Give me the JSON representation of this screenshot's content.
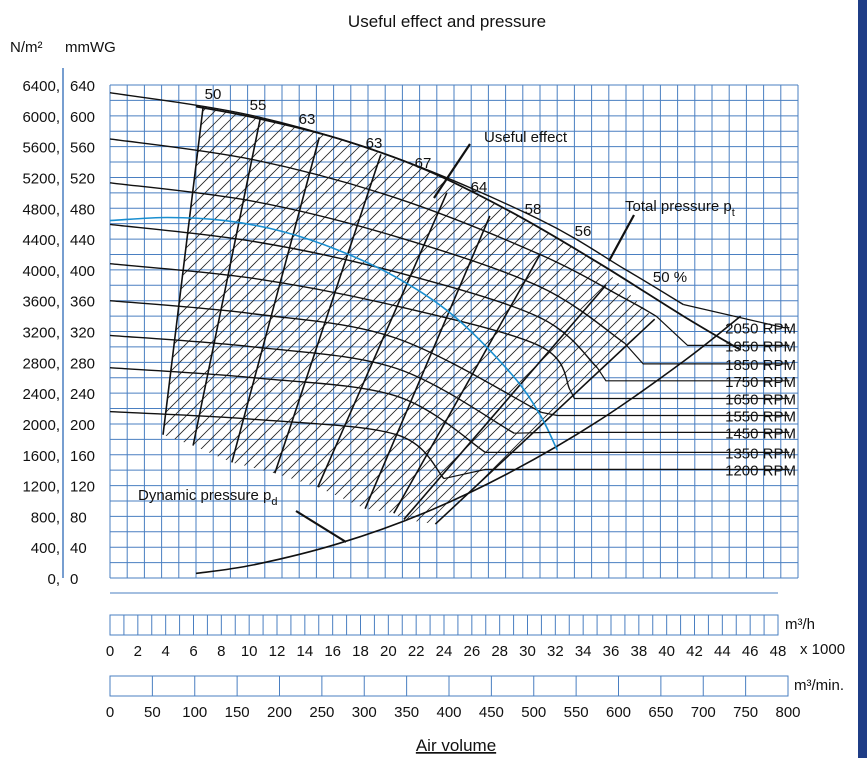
{
  "chart_data": {
    "type": "line",
    "title": "Useful effect and pressure",
    "xlabel": "Air volume",
    "left_axis_units": "N/m²",
    "right_axis_units": "mmWG",
    "y_range_mmwg": [
      0,
      640
    ],
    "y_range_nm2": [
      0,
      6400
    ],
    "y_ticks_mmwg": [
      "0",
      "40",
      "80",
      "120",
      "160",
      "200",
      "240",
      "280",
      "320",
      "360",
      "400",
      "440",
      "480",
      "520",
      "560",
      "600",
      "640"
    ],
    "y_ticks_nm2": [
      "0",
      "400",
      "800",
      "1200",
      "1600",
      "2000",
      "2400",
      "2800",
      "3200",
      "3600",
      "4000",
      "4400",
      "4800",
      "5200",
      "5600",
      "6000",
      "6400"
    ],
    "grid": true,
    "x_scale_top": {
      "unit": "m³/h",
      "multiplier": "x 1000",
      "range": [
        0,
        48
      ],
      "ticks": [
        "0",
        "2",
        "4",
        "6",
        "8",
        "10",
        "12",
        "14",
        "16",
        "18",
        "20",
        "22",
        "24",
        "26",
        "28",
        "30",
        "32",
        "34",
        "36",
        "38",
        "40",
        "42",
        "44",
        "46",
        "48"
      ]
    },
    "x_scale_bottom": {
      "unit": "m³/min.",
      "range": [
        0,
        800
      ],
      "ticks": [
        "0",
        "50",
        "100",
        "150",
        "200",
        "250",
        "300",
        "350",
        "400",
        "450",
        "500",
        "550",
        "600",
        "650",
        "700",
        "750",
        "800"
      ]
    },
    "speed_curves": [
      {
        "name": "2050 RPM",
        "x": [
          0,
          10,
          20,
          30,
          36,
          40
        ],
        "y": [
          630,
          600,
          545,
          465,
          400,
          355
        ]
      },
      {
        "name": "1950 RPM",
        "x": [
          0,
          10,
          20,
          30,
          36,
          38.1
        ],
        "y": [
          570,
          543,
          493,
          420,
          362,
          340
        ]
      },
      {
        "name": "1850 RPM",
        "x": [
          0,
          10,
          20,
          30,
          35.9
        ],
        "y": [
          513,
          489,
          443,
          378,
          305
        ]
      },
      {
        "name": "1750 RPM",
        "x": [
          0,
          10,
          20,
          30,
          34.0
        ],
        "y": [
          459,
          437,
          397,
          338,
          273
        ]
      },
      {
        "name": "1650 RPM",
        "x": [
          0,
          10,
          20,
          30,
          32.1
        ],
        "y": [
          408,
          389,
          353,
          301,
          244
        ]
      },
      {
        "name": "1550 RPM",
        "x": [
          0,
          10,
          20,
          30.1
        ],
        "y": [
          360,
          343,
          311,
          215
        ]
      },
      {
        "name": "1450 RPM",
        "x": [
          0,
          10,
          20,
          28.2
        ],
        "y": [
          315,
          300,
          272,
          188
        ]
      },
      {
        "name": "1350 RPM",
        "x": [
          0,
          10,
          20,
          26.2
        ],
        "y": [
          273,
          260,
          236,
          163
        ]
      },
      {
        "name": "1200 RPM",
        "x": [
          0,
          10,
          20,
          23.3
        ],
        "y": [
          216,
          206,
          186,
          129
        ]
      }
    ],
    "total_pressure_curve": {
      "name": "Total pressure pt",
      "x": [
        6,
        10,
        16,
        22,
        28,
        34,
        40,
        44
      ],
      "y": [
        612,
        598,
        570,
        530,
        475,
        410,
        340,
        296
      ]
    },
    "dynamic_pressure_curve": {
      "name": "Dynamic pressure pd",
      "x": [
        6,
        10,
        16,
        22,
        28,
        34,
        40,
        44
      ],
      "y": [
        6,
        17,
        45,
        85,
        138,
        203,
        281,
        340
      ]
    },
    "efficiency_lines": [
      {
        "label": "50",
        "x": [
          3.7,
          6.5
        ],
        "y": [
          186,
          612
        ]
      },
      {
        "label": "55",
        "x": [
          5.8,
          10.5
        ],
        "y": [
          172,
          598
        ]
      },
      {
        "label": "63",
        "x": [
          8.5,
          14.6
        ],
        "y": [
          150,
          572
        ]
      },
      {
        "label": "63",
        "x": [
          11.5,
          18.9
        ],
        "y": [
          136,
          550
        ]
      },
      {
        "label": "67",
        "x": [
          14.5,
          23.5
        ],
        "y": [
          118,
          500
        ]
      },
      {
        "label": "64",
        "x": [
          17.8,
          26.5
        ],
        "y": [
          90,
          470
        ]
      },
      {
        "label": "58",
        "x": [
          19.8,
          30.0
        ],
        "y": [
          84,
          420
        ]
      },
      {
        "label": "56",
        "x": [
          20.5,
          34.6
        ],
        "y": [
          76,
          380
        ]
      },
      {
        "label": "50 %",
        "x": [
          22.7,
          38.0
        ],
        "y": [
          70,
          336
        ]
      }
    ],
    "efficiency_region": {
      "from_x": 3.7,
      "to_x": 38.0,
      "max_y": 612
    },
    "blue_curve": {
      "x": [
        0,
        4,
        8,
        12,
        16,
        20,
        24,
        28,
        30,
        31.2
      ],
      "y": [
        464,
        468,
        464,
        450,
        425,
        390,
        340,
        265,
        212,
        166
      ]
    },
    "annotations": {
      "useful_effect": "Useful effect",
      "total_pressure": "Total pressure p",
      "total_pressure_sub": "t",
      "dynamic_pressure": "Dynamic pressure p",
      "dynamic_pressure_sub": "d"
    },
    "rpm_label_rows_mmwg": [
      325,
      302,
      278,
      256,
      233,
      211,
      189,
      163,
      141
    ],
    "rpm_label_bend_x": [
      47.0,
      40.3,
      37.2,
      34.6,
      32.4,
      31.2,
      30.6,
      28.5,
      26.2
    ],
    "colors": {
      "grid": "#4a7fc1",
      "curves": "#111111",
      "blue_curve": "#1a8fd0",
      "border": "#1f3d86"
    }
  }
}
